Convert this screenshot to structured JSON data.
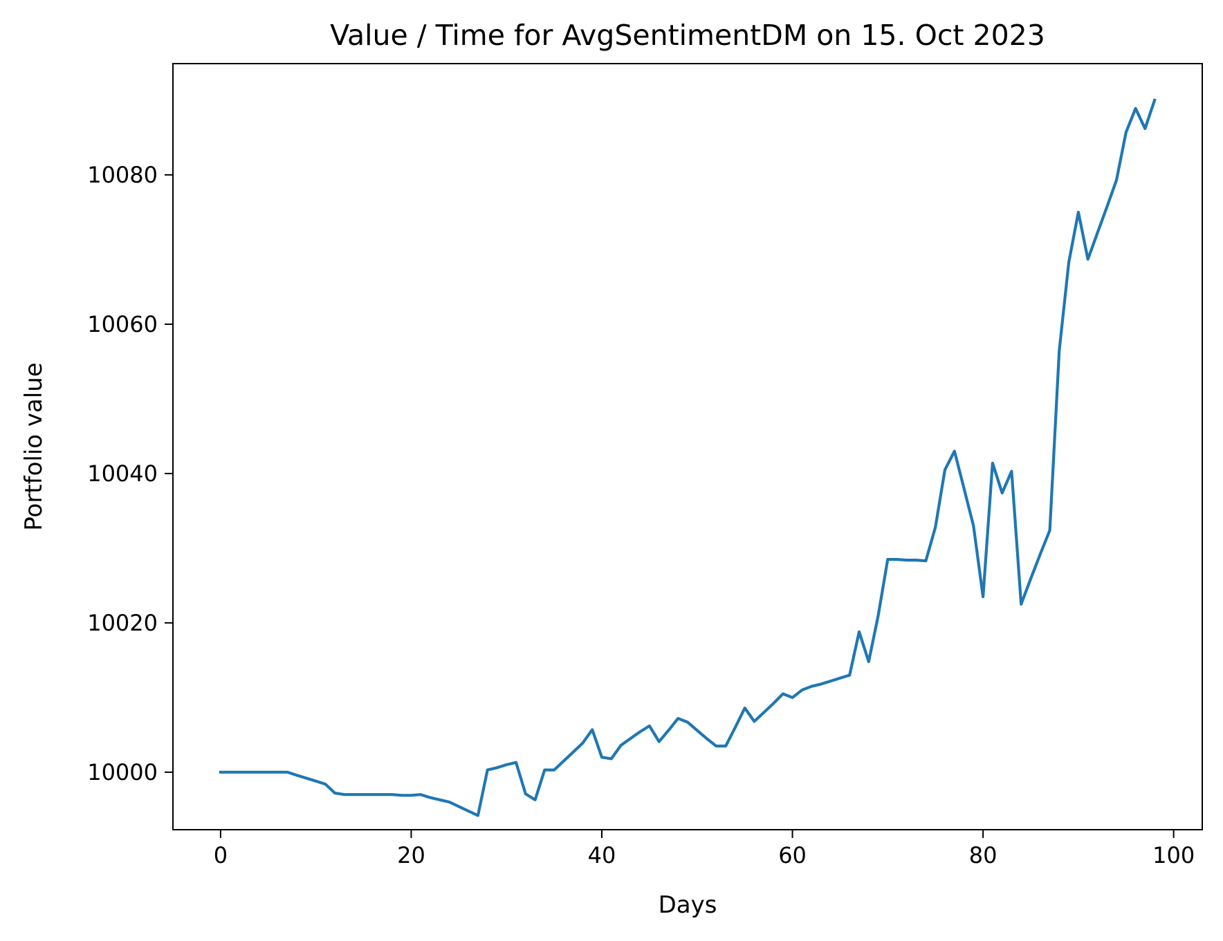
{
  "chart_data": {
    "type": "line",
    "title": "Value / Time for AvgSentimentDM on 15. Oct 2023",
    "xlabel": "Days",
    "ylabel": "Portfolio value",
    "xlim": [
      -5,
      103
    ],
    "ylim": [
      9992.3,
      10094.9
    ],
    "xticks": [
      0,
      20,
      40,
      60,
      80,
      100
    ],
    "yticks": [
      10000,
      10020,
      10040,
      10060,
      10080
    ],
    "grid": false,
    "legend": "none",
    "series": [
      {
        "color": "#1f77b4",
        "x": [
          0,
          1,
          2,
          3,
          4,
          5,
          6,
          7,
          8,
          9,
          10,
          11,
          12,
          13,
          14,
          15,
          16,
          17,
          18,
          19,
          20,
          21,
          22,
          23,
          24,
          25,
          26,
          27,
          28,
          29,
          30,
          31,
          32,
          33,
          34,
          35,
          36,
          37,
          38,
          39,
          40,
          41,
          42,
          43,
          44,
          45,
          46,
          47,
          48,
          49,
          50,
          51,
          52,
          53,
          54,
          55,
          56,
          57,
          58,
          59,
          60,
          61,
          62,
          63,
          64,
          65,
          66,
          67,
          68,
          69,
          70,
          71,
          72,
          73,
          74,
          75,
          76,
          77,
          78,
          79,
          80,
          81,
          82,
          83,
          84,
          85,
          86,
          87,
          88,
          89,
          90,
          91,
          92,
          93,
          94,
          95,
          96,
          97,
          98
        ],
        "y": [
          10000,
          10000,
          10000,
          10000,
          10000,
          10000,
          10000,
          10000,
          9999.6,
          9999.2,
          9998.8,
          9998.4,
          9997.2,
          9997.0,
          9997.0,
          9997.0,
          9997.0,
          9997.0,
          9997.0,
          9996.9,
          9996.9,
          9997.0,
          9996.6,
          9996.3,
          9996.0,
          9995.4,
          9994.8,
          9994.2,
          10000.3,
          10000.6,
          10001.0,
          10001.3,
          9997.1,
          9996.3,
          10000.3,
          10000.3,
          10001.5,
          10002.7,
          10003.9,
          10005.7,
          10002.0,
          10001.8,
          10003.6,
          10004.5,
          10005.4,
          10006.2,
          10004.1,
          10005.6,
          10007.2,
          10006.7,
          10005.6,
          10004.5,
          10003.5,
          10003.5,
          10006.0,
          10008.6,
          10006.8,
          10008.0,
          10009.2,
          10010.5,
          10010.0,
          10011.0,
          10011.5,
          10011.8,
          10012.2,
          10012.6,
          10013.0,
          10018.8,
          10014.8,
          10021.0,
          10028.5,
          10028.5,
          10028.4,
          10028.4,
          10028.3,
          10032.8,
          10040.5,
          10043.0,
          10038.0,
          10033.0,
          10023.5,
          10041.4,
          10037.4,
          10040.3,
          10022.5,
          10025.9,
          10029.2,
          10032.4,
          10056.5,
          10068.3,
          10075.0,
          10068.7,
          10072.2,
          10075.7,
          10079.3,
          10085.7,
          10088.9,
          10086.2,
          10090.0
        ]
      }
    ]
  }
}
